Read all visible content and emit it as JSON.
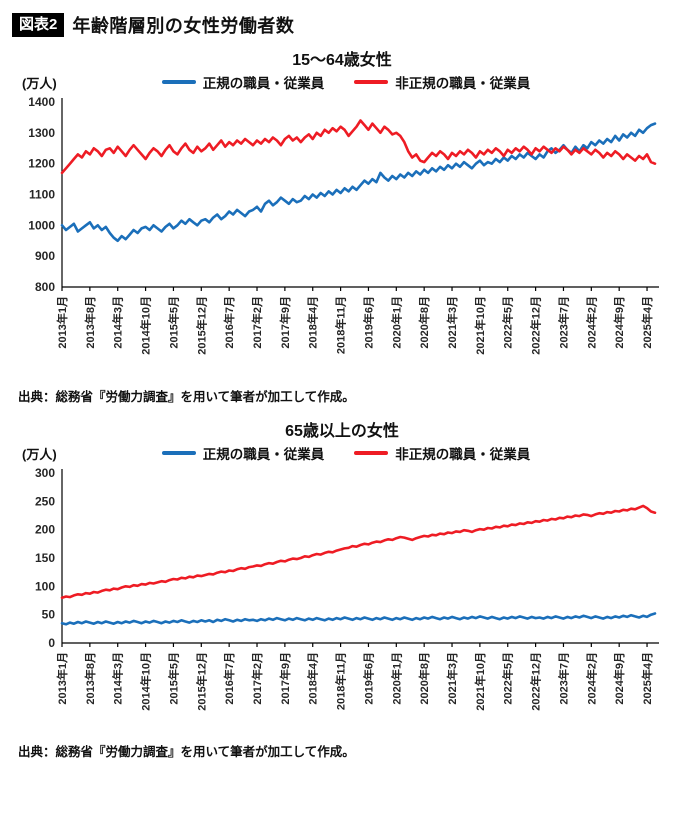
{
  "header": {
    "badge": "図表2",
    "title": "年齢階層別の女性労働者数"
  },
  "chart_data": [
    {
      "type": "line",
      "title": "15〜64歳女性",
      "unit_label": "(万人)",
      "ylim": [
        800,
        1400
      ],
      "ystep": 100,
      "x_label_step": 7,
      "x_labels": [
        "2013年1月",
        "2013年8月",
        "2014年3月",
        "2014年10月",
        "2015年5月",
        "2015年12月",
        "2016年7月",
        "2017年2月",
        "2017年9月",
        "2018年4月",
        "2018年11月",
        "2019年6月",
        "2020年1月",
        "2020年8月",
        "2021年3月",
        "2021年10月",
        "2022年5月",
        "2022年12月",
        "2023年7月",
        "2024年2月",
        "2024年9月",
        "2025年4月"
      ],
      "series": [
        {
          "name": "正規の職員・従業員",
          "color": "#1b6fba",
          "values": [
            1000,
            985,
            995,
            1005,
            980,
            990,
            1000,
            1010,
            990,
            1000,
            985,
            995,
            975,
            960,
            950,
            965,
            955,
            970,
            985,
            975,
            990,
            995,
            985,
            1000,
            990,
            980,
            995,
            1005,
            990,
            1000,
            1015,
            1005,
            1020,
            1010,
            1000,
            1015,
            1020,
            1010,
            1025,
            1035,
            1020,
            1030,
            1045,
            1035,
            1050,
            1040,
            1030,
            1045,
            1050,
            1060,
            1045,
            1070,
            1080,
            1065,
            1075,
            1090,
            1080,
            1070,
            1085,
            1075,
            1080,
            1095,
            1085,
            1100,
            1090,
            1105,
            1095,
            1110,
            1100,
            1115,
            1105,
            1120,
            1110,
            1125,
            1115,
            1130,
            1145,
            1135,
            1150,
            1140,
            1170,
            1155,
            1145,
            1160,
            1150,
            1165,
            1155,
            1170,
            1160,
            1175,
            1165,
            1180,
            1170,
            1185,
            1175,
            1190,
            1180,
            1195,
            1185,
            1200,
            1190,
            1205,
            1195,
            1185,
            1200,
            1210,
            1195,
            1205,
            1200,
            1215,
            1205,
            1220,
            1210,
            1225,
            1215,
            1230,
            1220,
            1235,
            1225,
            1215,
            1230,
            1220,
            1240,
            1250,
            1235,
            1245,
            1260,
            1245,
            1235,
            1255,
            1240,
            1260,
            1250,
            1270,
            1260,
            1275,
            1265,
            1280,
            1270,
            1290,
            1275,
            1295,
            1285,
            1300,
            1290,
            1310,
            1300,
            1315,
            1325,
            1330
          ]
        },
        {
          "name": "非正規の職員・従業員",
          "color": "#ee1c24",
          "values": [
            1170,
            1185,
            1200,
            1215,
            1230,
            1220,
            1240,
            1230,
            1250,
            1240,
            1225,
            1245,
            1250,
            1235,
            1255,
            1240,
            1225,
            1245,
            1260,
            1245,
            1230,
            1215,
            1235,
            1250,
            1240,
            1225,
            1245,
            1260,
            1240,
            1230,
            1250,
            1265,
            1245,
            1235,
            1255,
            1240,
            1250,
            1265,
            1245,
            1260,
            1275,
            1255,
            1270,
            1260,
            1275,
            1265,
            1280,
            1270,
            1260,
            1275,
            1265,
            1280,
            1270,
            1285,
            1275,
            1260,
            1280,
            1290,
            1275,
            1285,
            1270,
            1285,
            1295,
            1280,
            1300,
            1290,
            1310,
            1300,
            1315,
            1305,
            1320,
            1310,
            1290,
            1305,
            1320,
            1340,
            1325,
            1310,
            1330,
            1315,
            1300,
            1320,
            1310,
            1295,
            1300,
            1290,
            1270,
            1240,
            1220,
            1230,
            1210,
            1205,
            1220,
            1235,
            1225,
            1240,
            1230,
            1215,
            1235,
            1225,
            1240,
            1230,
            1245,
            1235,
            1220,
            1240,
            1230,
            1245,
            1235,
            1250,
            1240,
            1225,
            1245,
            1235,
            1250,
            1240,
            1255,
            1245,
            1230,
            1250,
            1240,
            1255,
            1245,
            1235,
            1250,
            1240,
            1255,
            1245,
            1230,
            1245,
            1235,
            1250,
            1240,
            1230,
            1245,
            1235,
            1220,
            1235,
            1225,
            1240,
            1230,
            1215,
            1230,
            1220,
            1210,
            1225,
            1215,
            1230,
            1205,
            1200
          ]
        }
      ],
      "source": "出典：総務省『労働力調査』を用いて筆者が加工して作成。"
    },
    {
      "type": "line",
      "title": "65歳以上の女性",
      "unit_label": "(万人)",
      "ylim": [
        0,
        300
      ],
      "ystep": 50,
      "x_label_step": 7,
      "x_labels": [
        "2013年1月",
        "2013年8月",
        "2014年3月",
        "2014年10月",
        "2015年5月",
        "2015年12月",
        "2016年7月",
        "2017年2月",
        "2017年9月",
        "2018年4月",
        "2018年11月",
        "2019年6月",
        "2020年1月",
        "2020年8月",
        "2021年3月",
        "2021年10月",
        "2022年5月",
        "2022年12月",
        "2023年7月",
        "2024年2月",
        "2024年9月",
        "2025年4月"
      ],
      "series": [
        {
          "name": "正規の職員・従業員",
          "color": "#1b6fba",
          "values": [
            35,
            33,
            36,
            34,
            37,
            35,
            38,
            36,
            34,
            37,
            35,
            38,
            36,
            34,
            37,
            35,
            38,
            36,
            39,
            37,
            35,
            38,
            36,
            39,
            37,
            35,
            38,
            36,
            39,
            37,
            40,
            38,
            36,
            39,
            37,
            40,
            38,
            40,
            37,
            41,
            39,
            42,
            40,
            38,
            41,
            39,
            42,
            40,
            41,
            39,
            42,
            40,
            43,
            41,
            44,
            42,
            40,
            43,
            41,
            44,
            42,
            40,
            43,
            41,
            44,
            42,
            40,
            43,
            41,
            44,
            42,
            45,
            43,
            41,
            44,
            42,
            45,
            43,
            41,
            44,
            42,
            45,
            43,
            41,
            44,
            42,
            45,
            43,
            41,
            44,
            42,
            45,
            43,
            46,
            44,
            42,
            45,
            43,
            46,
            44,
            42,
            45,
            43,
            46,
            44,
            47,
            45,
            43,
            46,
            44,
            42,
            45,
            43,
            46,
            44,
            47,
            45,
            43,
            46,
            44,
            45,
            43,
            46,
            44,
            47,
            45,
            43,
            46,
            44,
            47,
            45,
            48,
            46,
            44,
            47,
            45,
            43,
            46,
            44,
            47,
            45,
            48,
            46,
            49,
            47,
            45,
            48,
            46,
            50,
            52
          ]
        },
        {
          "name": "非正規の職員・従業員",
          "color": "#ee1c24",
          "values": [
            80,
            82,
            81,
            84,
            86,
            85,
            88,
            87,
            90,
            89,
            92,
            94,
            93,
            96,
            95,
            98,
            100,
            99,
            102,
            101,
            104,
            103,
            106,
            105,
            107,
            109,
            108,
            111,
            113,
            112,
            115,
            114,
            117,
            116,
            119,
            118,
            120,
            122,
            121,
            124,
            126,
            125,
            128,
            127,
            130,
            132,
            131,
            134,
            135,
            137,
            136,
            139,
            141,
            140,
            143,
            145,
            144,
            147,
            149,
            148,
            150,
            153,
            152,
            155,
            157,
            156,
            159,
            161,
            160,
            163,
            165,
            167,
            168,
            171,
            170,
            173,
            175,
            174,
            177,
            179,
            178,
            181,
            183,
            182,
            185,
            187,
            186,
            184,
            182,
            185,
            187,
            189,
            188,
            191,
            190,
            193,
            192,
            195,
            194,
            197,
            196,
            199,
            198,
            196,
            199,
            201,
            200,
            203,
            202,
            205,
            204,
            207,
            206,
            209,
            208,
            211,
            210,
            213,
            212,
            215,
            214,
            217,
            216,
            219,
            218,
            221,
            220,
            223,
            222,
            225,
            224,
            227,
            226,
            224,
            227,
            229,
            228,
            231,
            230,
            233,
            232,
            235,
            234,
            237,
            236,
            239,
            242,
            238,
            232,
            230
          ]
        }
      ],
      "source": "出典：総務省『労働力調査』を用いて筆者が加工して作成。"
    }
  ]
}
